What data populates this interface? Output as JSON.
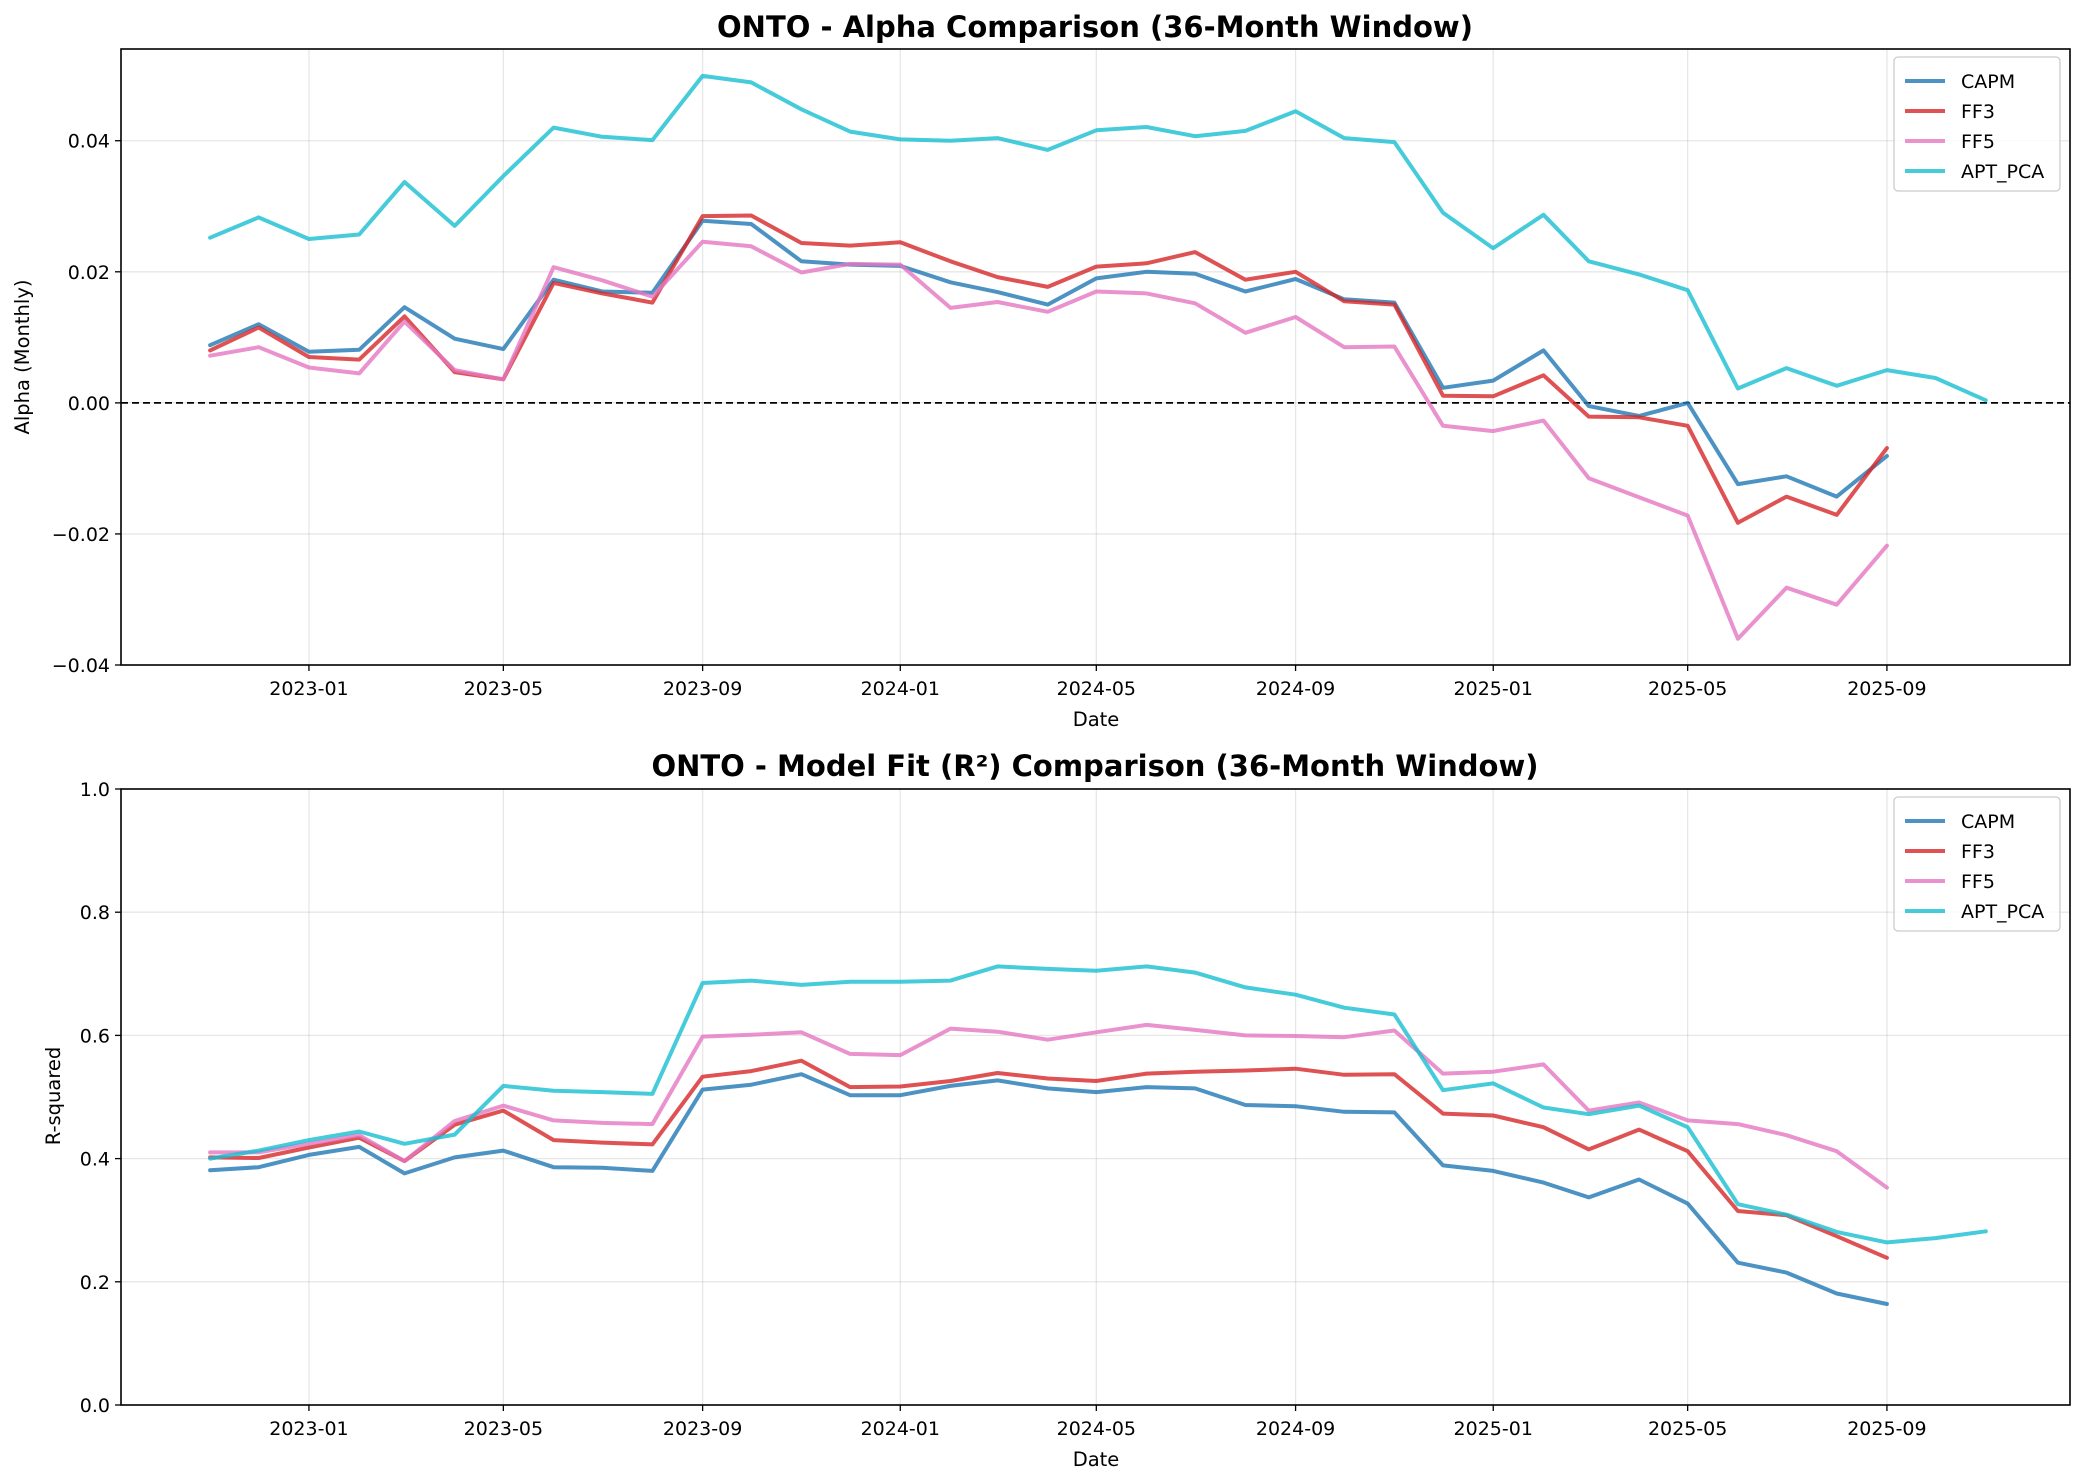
{
  "chart_data": [
    {
      "type": "line",
      "title": "ONTO - Alpha Comparison (36-Month Window)",
      "xlabel": "Date",
      "ylabel": "Alpha (Monthly)",
      "xlim": [
        "2022-09-07",
        "2025-12-23"
      ],
      "ylim": [
        -0.04,
        0.054
      ],
      "xticks": [
        "2023-01",
        "2023-05",
        "2023-09",
        "2024-01",
        "2024-05",
        "2024-09",
        "2025-01",
        "2025-05",
        "2025-09"
      ],
      "yticks": [
        -0.04,
        -0.02,
        0.0,
        0.02,
        0.04
      ],
      "ytick_labels": [
        "−0.04",
        "−0.02",
        "0.00",
        "0.02",
        "0.04"
      ],
      "reference_line": {
        "y": 0,
        "style": "dashed",
        "color": "#000000"
      },
      "grid": true,
      "legend": "top-right",
      "x": [
        "2022-11-01",
        "2022-12-01",
        "2023-01-01",
        "2023-02-01",
        "2023-03-01",
        "2023-04-01",
        "2023-05-01",
        "2023-06-01",
        "2023-07-01",
        "2023-08-01",
        "2023-09-01",
        "2023-10-01",
        "2023-11-01",
        "2023-12-01",
        "2024-01-01",
        "2024-02-01",
        "2024-03-01",
        "2024-04-01",
        "2024-05-01",
        "2024-06-01",
        "2024-07-01",
        "2024-08-01",
        "2024-09-01",
        "2024-10-01",
        "2024-11-01",
        "2024-12-01",
        "2025-01-01",
        "2025-02-01",
        "2025-03-01",
        "2025-04-01",
        "2025-05-01",
        "2025-06-01",
        "2025-07-01",
        "2025-08-01",
        "2025-09-01",
        "2025-10-01",
        "2025-11-01"
      ],
      "series": [
        {
          "name": "CAPM",
          "color": "#1f77b4",
          "values": [
            0.0088,
            0.012,
            0.0078,
            0.0081,
            0.0146,
            0.0098,
            0.0082,
            0.0188,
            0.017,
            0.0168,
            0.0278,
            0.0273,
            0.0216,
            0.0211,
            0.0209,
            0.0184,
            0.0169,
            0.015,
            0.019,
            0.02,
            0.0197,
            0.017,
            0.0189,
            0.0158,
            0.0153,
            0.0023,
            0.0034,
            0.008,
            -0.0005,
            -0.002,
            0.0,
            -0.0124,
            -0.0112,
            -0.0143,
            -0.0081,
            null,
            null
          ]
        },
        {
          "name": "FF3",
          "color": "#d62728",
          "values": [
            0.008,
            0.0115,
            0.007,
            0.0066,
            0.0132,
            0.0047,
            0.0036,
            0.0183,
            0.0167,
            0.0153,
            0.0285,
            0.0286,
            0.0244,
            0.024,
            0.0245,
            0.0216,
            0.0192,
            0.0177,
            0.0208,
            0.0213,
            0.023,
            0.0188,
            0.02,
            0.0155,
            0.015,
            0.0011,
            0.001,
            0.0042,
            -0.0021,
            -0.0022,
            -0.0035,
            -0.0183,
            -0.0143,
            -0.0171,
            -0.0069,
            null,
            null
          ]
        },
        {
          "name": "FF5",
          "color": "#e377c2",
          "values": [
            0.0072,
            0.0085,
            0.0054,
            0.0045,
            0.0124,
            0.005,
            0.0036,
            0.0207,
            0.0187,
            0.0162,
            0.0246,
            0.0239,
            0.0199,
            0.0212,
            0.0211,
            0.0145,
            0.0154,
            0.0139,
            0.017,
            0.0167,
            0.0152,
            0.0107,
            0.0131,
            0.0085,
            0.0086,
            -0.0035,
            -0.0043,
            -0.0027,
            -0.0115,
            -0.0144,
            -0.0172,
            -0.036,
            -0.0282,
            -0.0308,
            -0.0218,
            null,
            null
          ]
        },
        {
          "name": "APT_PCA",
          "color": "#17becf",
          "values": [
            0.0252,
            0.0283,
            0.025,
            0.0257,
            0.0337,
            0.027,
            0.0346,
            0.042,
            0.0406,
            0.0401,
            0.0499,
            0.0489,
            0.0448,
            0.0414,
            0.0402,
            0.04,
            0.0404,
            0.0386,
            0.0416,
            0.0421,
            0.0407,
            0.0415,
            0.0445,
            0.0404,
            0.0398,
            0.029,
            0.0236,
            0.0287,
            0.0216,
            0.0196,
            0.0172,
            0.0022,
            0.0053,
            0.0026,
            0.005,
            0.0038,
            0.0004
          ]
        }
      ]
    },
    {
      "type": "line",
      "title": "ONTO - Model Fit (R²) Comparison (36-Month Window)",
      "xlabel": "Date",
      "ylabel": "R-squared",
      "xlim": [
        "2022-09-07",
        "2025-12-23"
      ],
      "ylim": [
        0.0,
        1.0
      ],
      "xticks": [
        "2023-01",
        "2023-05",
        "2023-09",
        "2024-01",
        "2024-05",
        "2024-09",
        "2025-01",
        "2025-05",
        "2025-09"
      ],
      "yticks": [
        0.0,
        0.2,
        0.4,
        0.6,
        0.8,
        1.0
      ],
      "ytick_labels": [
        "0.0",
        "0.2",
        "0.4",
        "0.6",
        "0.8",
        "1.0"
      ],
      "grid": true,
      "legend": "top-right",
      "x": [
        "2022-11-01",
        "2022-12-01",
        "2023-01-01",
        "2023-02-01",
        "2023-03-01",
        "2023-04-01",
        "2023-05-01",
        "2023-06-01",
        "2023-07-01",
        "2023-08-01",
        "2023-09-01",
        "2023-10-01",
        "2023-11-01",
        "2023-12-01",
        "2024-01-01",
        "2024-02-01",
        "2024-03-01",
        "2024-04-01",
        "2024-05-01",
        "2024-06-01",
        "2024-07-01",
        "2024-08-01",
        "2024-09-01",
        "2024-10-01",
        "2024-11-01",
        "2024-12-01",
        "2025-01-01",
        "2025-02-01",
        "2025-03-01",
        "2025-04-01",
        "2025-05-01",
        "2025-06-01",
        "2025-07-01",
        "2025-08-01",
        "2025-09-01",
        "2025-10-01",
        "2025-11-01"
      ],
      "series": [
        {
          "name": "CAPM",
          "color": "#1f77b4",
          "values": [
            0.381,
            0.386,
            0.406,
            0.419,
            0.376,
            0.402,
            0.413,
            0.386,
            0.385,
            0.38,
            0.512,
            0.52,
            0.537,
            0.503,
            0.503,
            0.518,
            0.527,
            0.514,
            0.508,
            0.516,
            0.514,
            0.487,
            0.485,
            0.476,
            0.475,
            0.389,
            0.38,
            0.361,
            0.337,
            0.366,
            0.327,
            0.231,
            0.215,
            0.181,
            0.164,
            null,
            null
          ]
        },
        {
          "name": "FF3",
          "color": "#d62728",
          "values": [
            0.402,
            0.401,
            0.418,
            0.434,
            0.396,
            0.455,
            0.478,
            0.43,
            0.426,
            0.423,
            0.533,
            0.542,
            0.559,
            0.516,
            0.517,
            0.526,
            0.539,
            0.53,
            0.526,
            0.538,
            0.541,
            0.543,
            0.546,
            0.536,
            0.537,
            0.473,
            0.47,
            0.451,
            0.415,
            0.447,
            0.412,
            0.315,
            0.308,
            0.274,
            0.239,
            null,
            null
          ]
        },
        {
          "name": "FF5",
          "color": "#e377c2",
          "values": [
            0.41,
            0.41,
            0.424,
            0.438,
            0.396,
            0.461,
            0.486,
            0.462,
            0.458,
            0.456,
            0.598,
            0.601,
            0.605,
            0.57,
            0.568,
            0.611,
            0.606,
            0.593,
            0.605,
            0.617,
            0.609,
            0.6,
            0.599,
            0.597,
            0.608,
            0.538,
            0.541,
            0.553,
            0.478,
            0.491,
            0.462,
            0.456,
            0.438,
            0.412,
            0.353,
            null,
            null
          ]
        },
        {
          "name": "APT_PCA",
          "color": "#17becf",
          "values": [
            0.4,
            0.413,
            0.43,
            0.444,
            0.424,
            0.439,
            0.518,
            0.51,
            0.508,
            0.505,
            0.685,
            0.689,
            0.682,
            0.687,
            0.687,
            0.689,
            0.712,
            0.708,
            0.705,
            0.712,
            0.702,
            0.678,
            0.666,
            0.645,
            0.634,
            0.511,
            0.522,
            0.483,
            0.472,
            0.486,
            0.451,
            0.326,
            0.309,
            0.281,
            0.264,
            0.271,
            0.282
          ]
        }
      ]
    }
  ]
}
